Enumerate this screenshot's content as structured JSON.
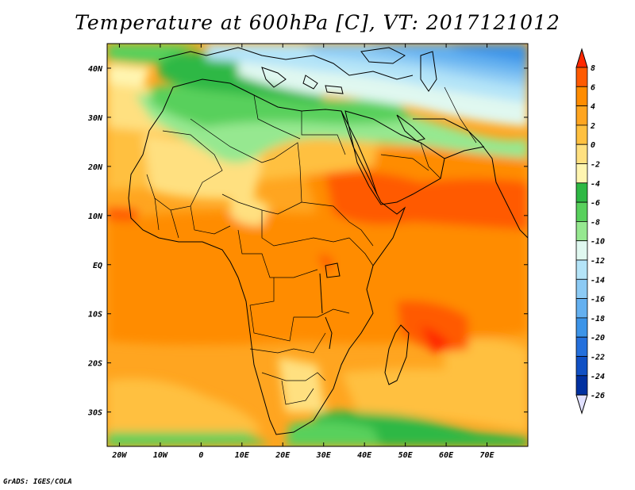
{
  "title": "Temperature at 600hPa [C], VT: 2017121012",
  "credit": "GrADS: IGES/COLA",
  "map": {
    "region": "Africa",
    "variable": "Temperature at 600hPa",
    "units": "C",
    "valid_time": "2017121012",
    "lon_range": [
      -23,
      80
    ],
    "lat_range": [
      -37,
      45
    ],
    "x_ticks": [
      "20W",
      "10W",
      "0",
      "10E",
      "20E",
      "30E",
      "40E",
      "50E",
      "60E",
      "70E"
    ],
    "y_ticks": [
      "40N",
      "30N",
      "20N",
      "10N",
      "EQ",
      "10S",
      "20S",
      "30S"
    ]
  },
  "colorbar": {
    "levels": [
      "8",
      "6",
      "4",
      "2",
      "0",
      "-2",
      "-4",
      "-6",
      "-8",
      "-10",
      "-12",
      "-14",
      "-16",
      "-18",
      "-20",
      "-22",
      "-24",
      "-26"
    ],
    "colors": [
      "#ff2800",
      "#ff5a00",
      "#ff8c00",
      "#ffa520",
      "#ffc040",
      "#ffe080",
      "#fff5b0",
      "#2eb844",
      "#58d05c",
      "#96e890",
      "#e0f8f0",
      "#b4e4f8",
      "#8ccaf4",
      "#64b0f0",
      "#3c94e8",
      "#2470dc",
      "#1050c4",
      "#0030a0",
      "#101070",
      "#e0e0ff"
    ]
  }
}
